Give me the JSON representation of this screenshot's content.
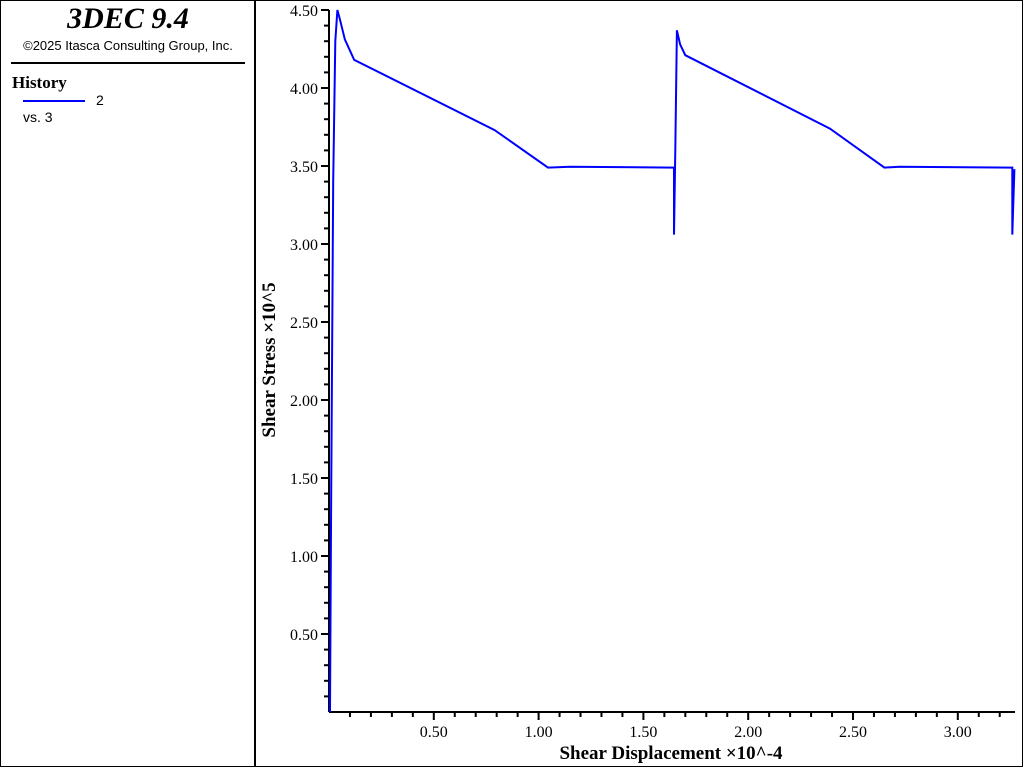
{
  "legend": {
    "app_title": "3DEC 9.4",
    "copyright": "©2025 Itasca Consulting Group, Inc.",
    "history_title": "History",
    "history_id": "2",
    "history_vs": "vs. 3",
    "series_color": "#0000ff"
  },
  "chart_data": {
    "type": "line",
    "xlabel": "Shear Displacement ×10^-4",
    "ylabel": "Shear Stress ×10^5",
    "xlim": [
      0,
      3.27
    ],
    "ylim": [
      0,
      4.5
    ],
    "x_ticks": [
      "0.50",
      "1.00",
      "1.50",
      "2.00",
      "2.50",
      "3.00"
    ],
    "y_ticks": [
      "0.50",
      "1.00",
      "1.50",
      "2.00",
      "2.50",
      "3.00",
      "3.50",
      "4.00",
      "4.50"
    ],
    "grid": false,
    "series": [
      {
        "color": "#0000ff",
        "x": [
          0.005,
          0.01,
          0.02,
          0.03,
          0.04,
          0.05,
          0.076,
          0.12,
          0.79,
          1.045,
          1.15,
          1.646,
          1.646,
          1.652,
          1.66,
          1.675,
          1.7,
          2.39,
          2.65,
          2.72,
          3.26,
          3.26,
          3.27
        ],
        "y": [
          0,
          1.3,
          3.4,
          4.3,
          4.5,
          4.45,
          4.31,
          4.18,
          3.73,
          3.49,
          3.495,
          3.49,
          3.06,
          3.6,
          4.37,
          4.28,
          4.21,
          3.74,
          3.49,
          3.495,
          3.49,
          3.06,
          3.48
        ]
      }
    ]
  }
}
